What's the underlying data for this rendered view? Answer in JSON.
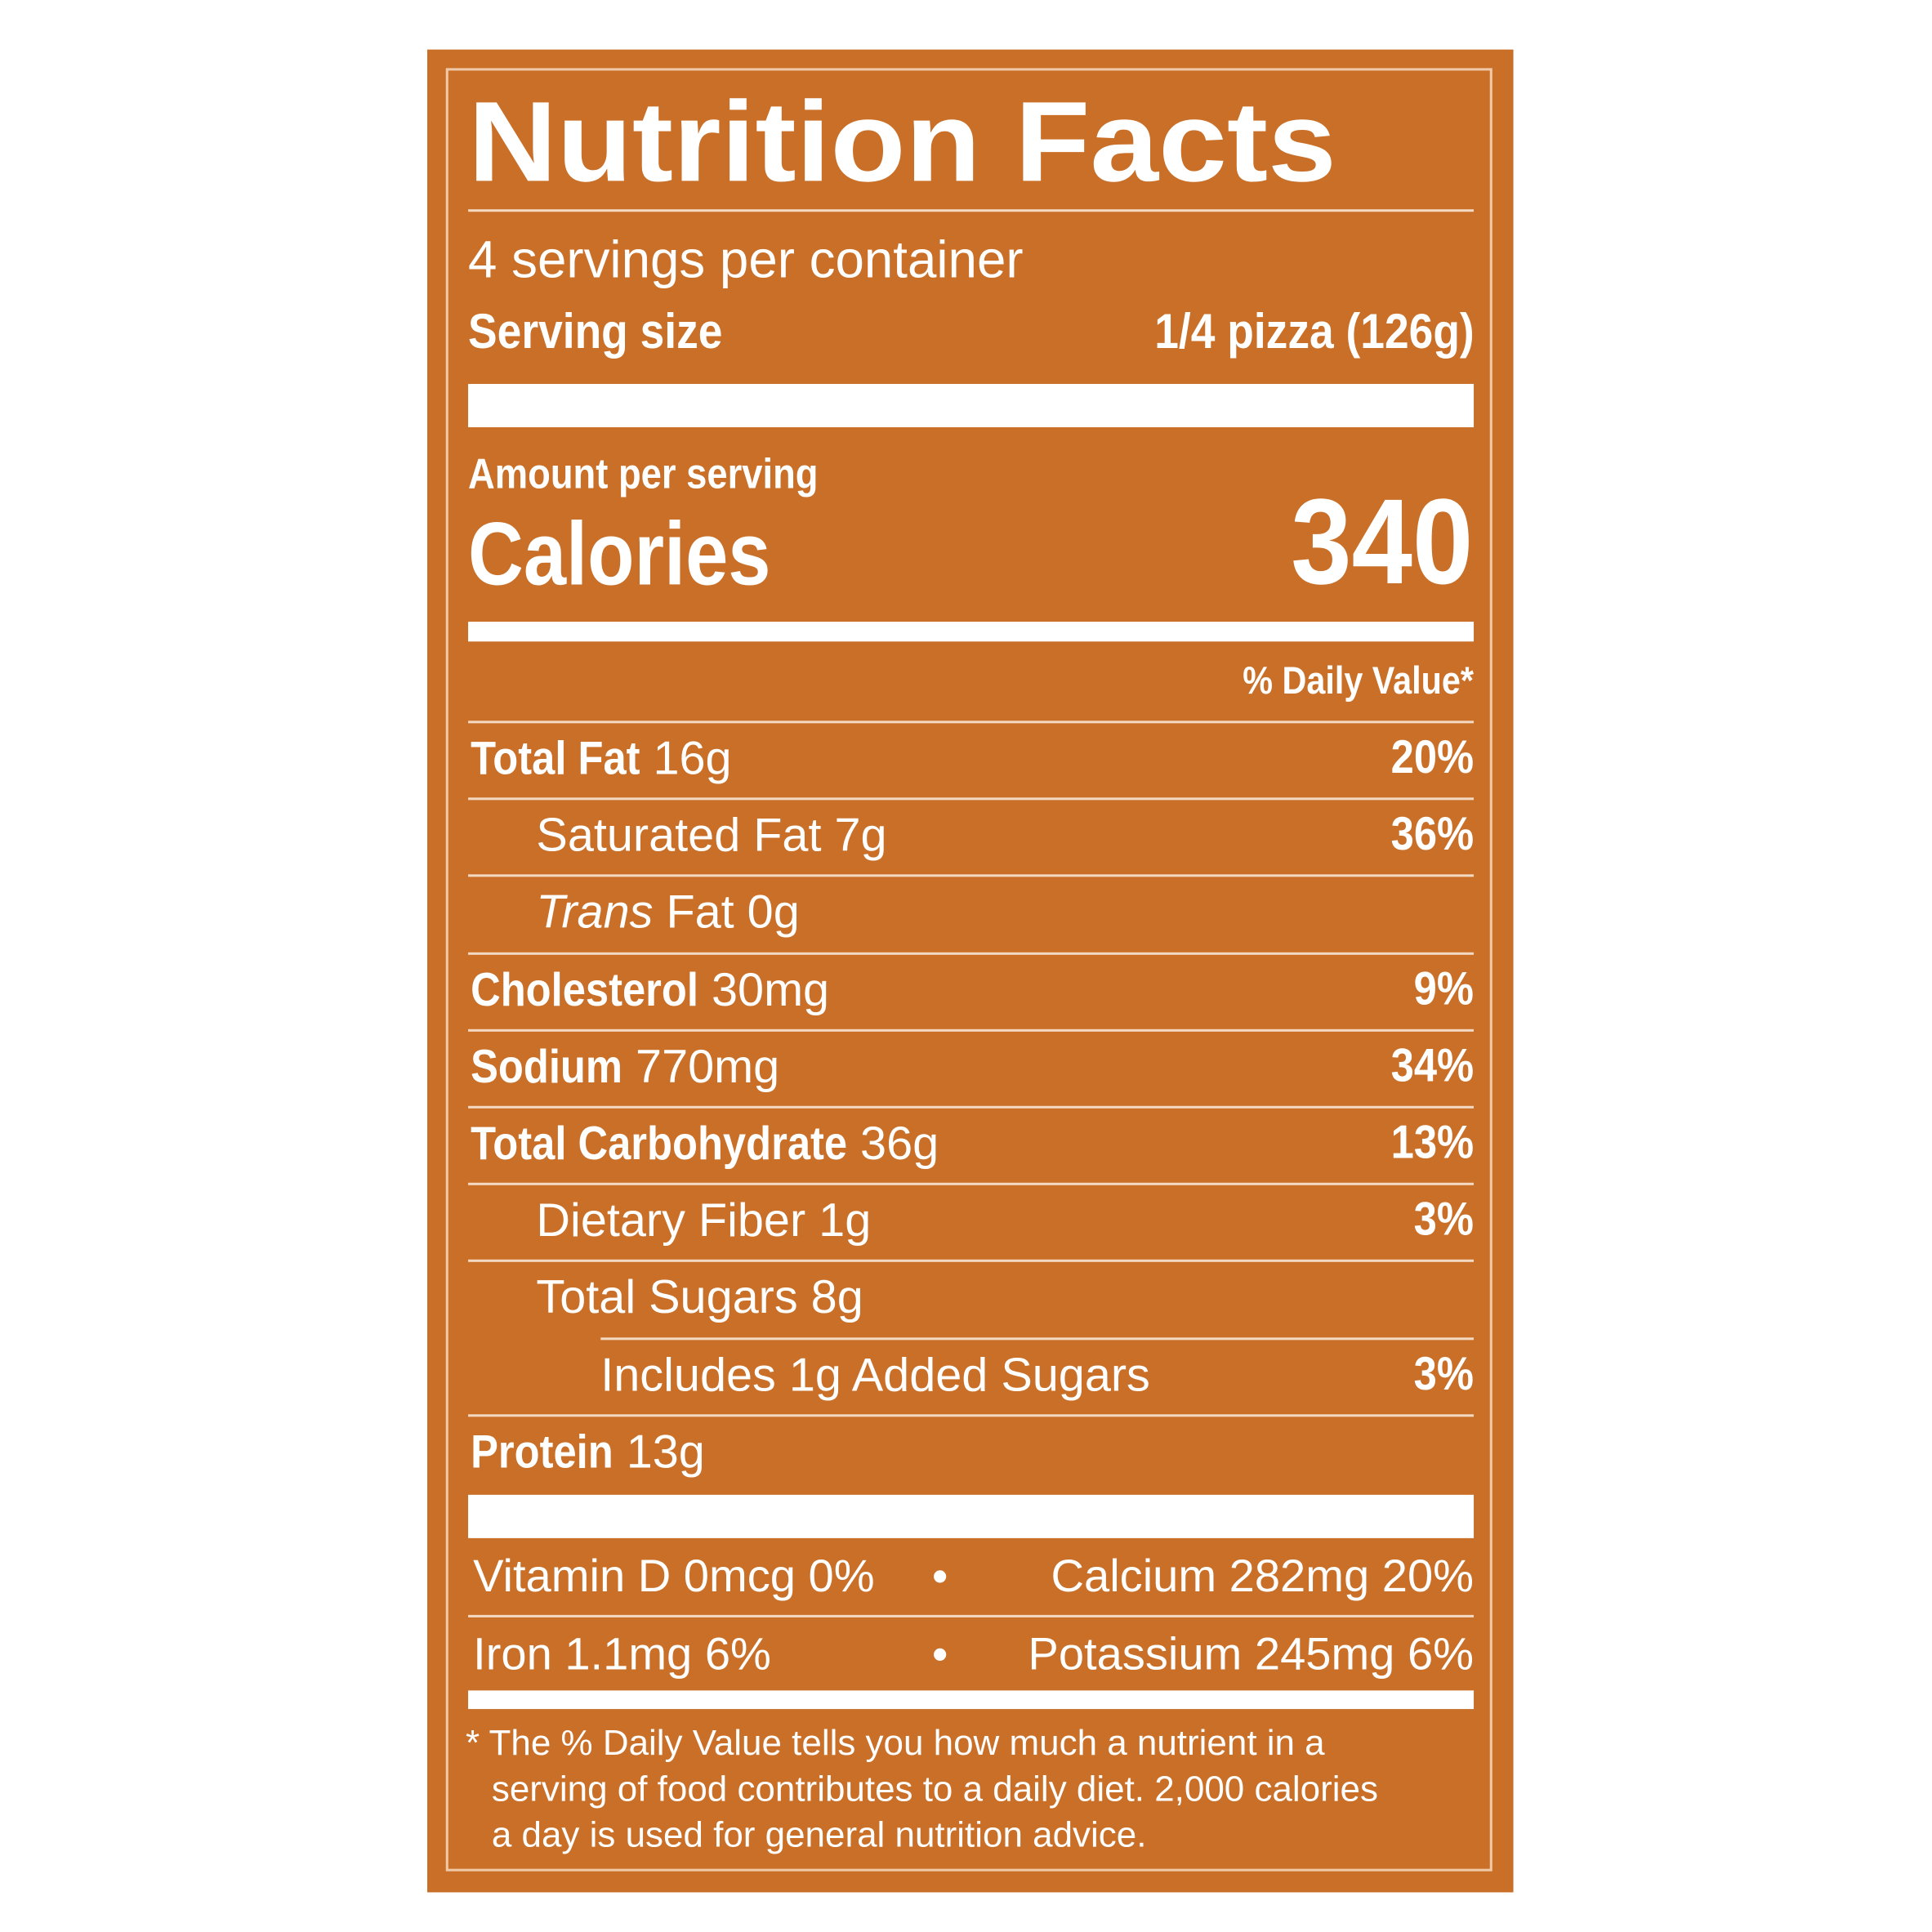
{
  "label": {
    "title": "Nutrition Facts",
    "servings": "4 servings per container",
    "serving_size": {
      "label": "Serving size",
      "value": "1/4 pizza (126g)"
    },
    "amount_per_serving": "Amount per serving",
    "calories": {
      "label": "Calories",
      "value": 340
    },
    "daily_value_header": "% Daily Value*",
    "nutrients": [
      {
        "name": "Total Fat",
        "amount": "16g",
        "dv": "20%"
      },
      {
        "name": "Saturated Fat",
        "amount": "7g",
        "dv": "36%"
      },
      {
        "name": "Trans",
        "amount": "Fat 0g"
      },
      {
        "name": "Cholesterol",
        "amount": "30mg",
        "dv": "9%"
      },
      {
        "name": "Sodium",
        "amount": "770mg",
        "dv": "34%"
      },
      {
        "name": "Total Carbohydrate",
        "amount": "36g",
        "dv": "13%"
      },
      {
        "name": "Dietary Fiber",
        "amount": "1g",
        "dv": "3%"
      },
      {
        "name": "Total Sugars",
        "amount": "8g"
      },
      {
        "name": "Includes 1g Added Sugars",
        "dv": "3%"
      },
      {
        "name": "Protein",
        "amount": "13g"
      }
    ],
    "micronutrients": [
      [
        "Vitamin D 0mcg 0%",
        "Calcium 282mg 20%"
      ],
      [
        "Iron 1.1mg 6%",
        "Potassium 245mg 6%"
      ]
    ],
    "footnote": [
      "* The % Daily Value tells you how much a nutrient in a",
      "serving of food contributes to a daily diet. 2,000 calories",
      "a day is used for general nutrition advice."
    ]
  }
}
